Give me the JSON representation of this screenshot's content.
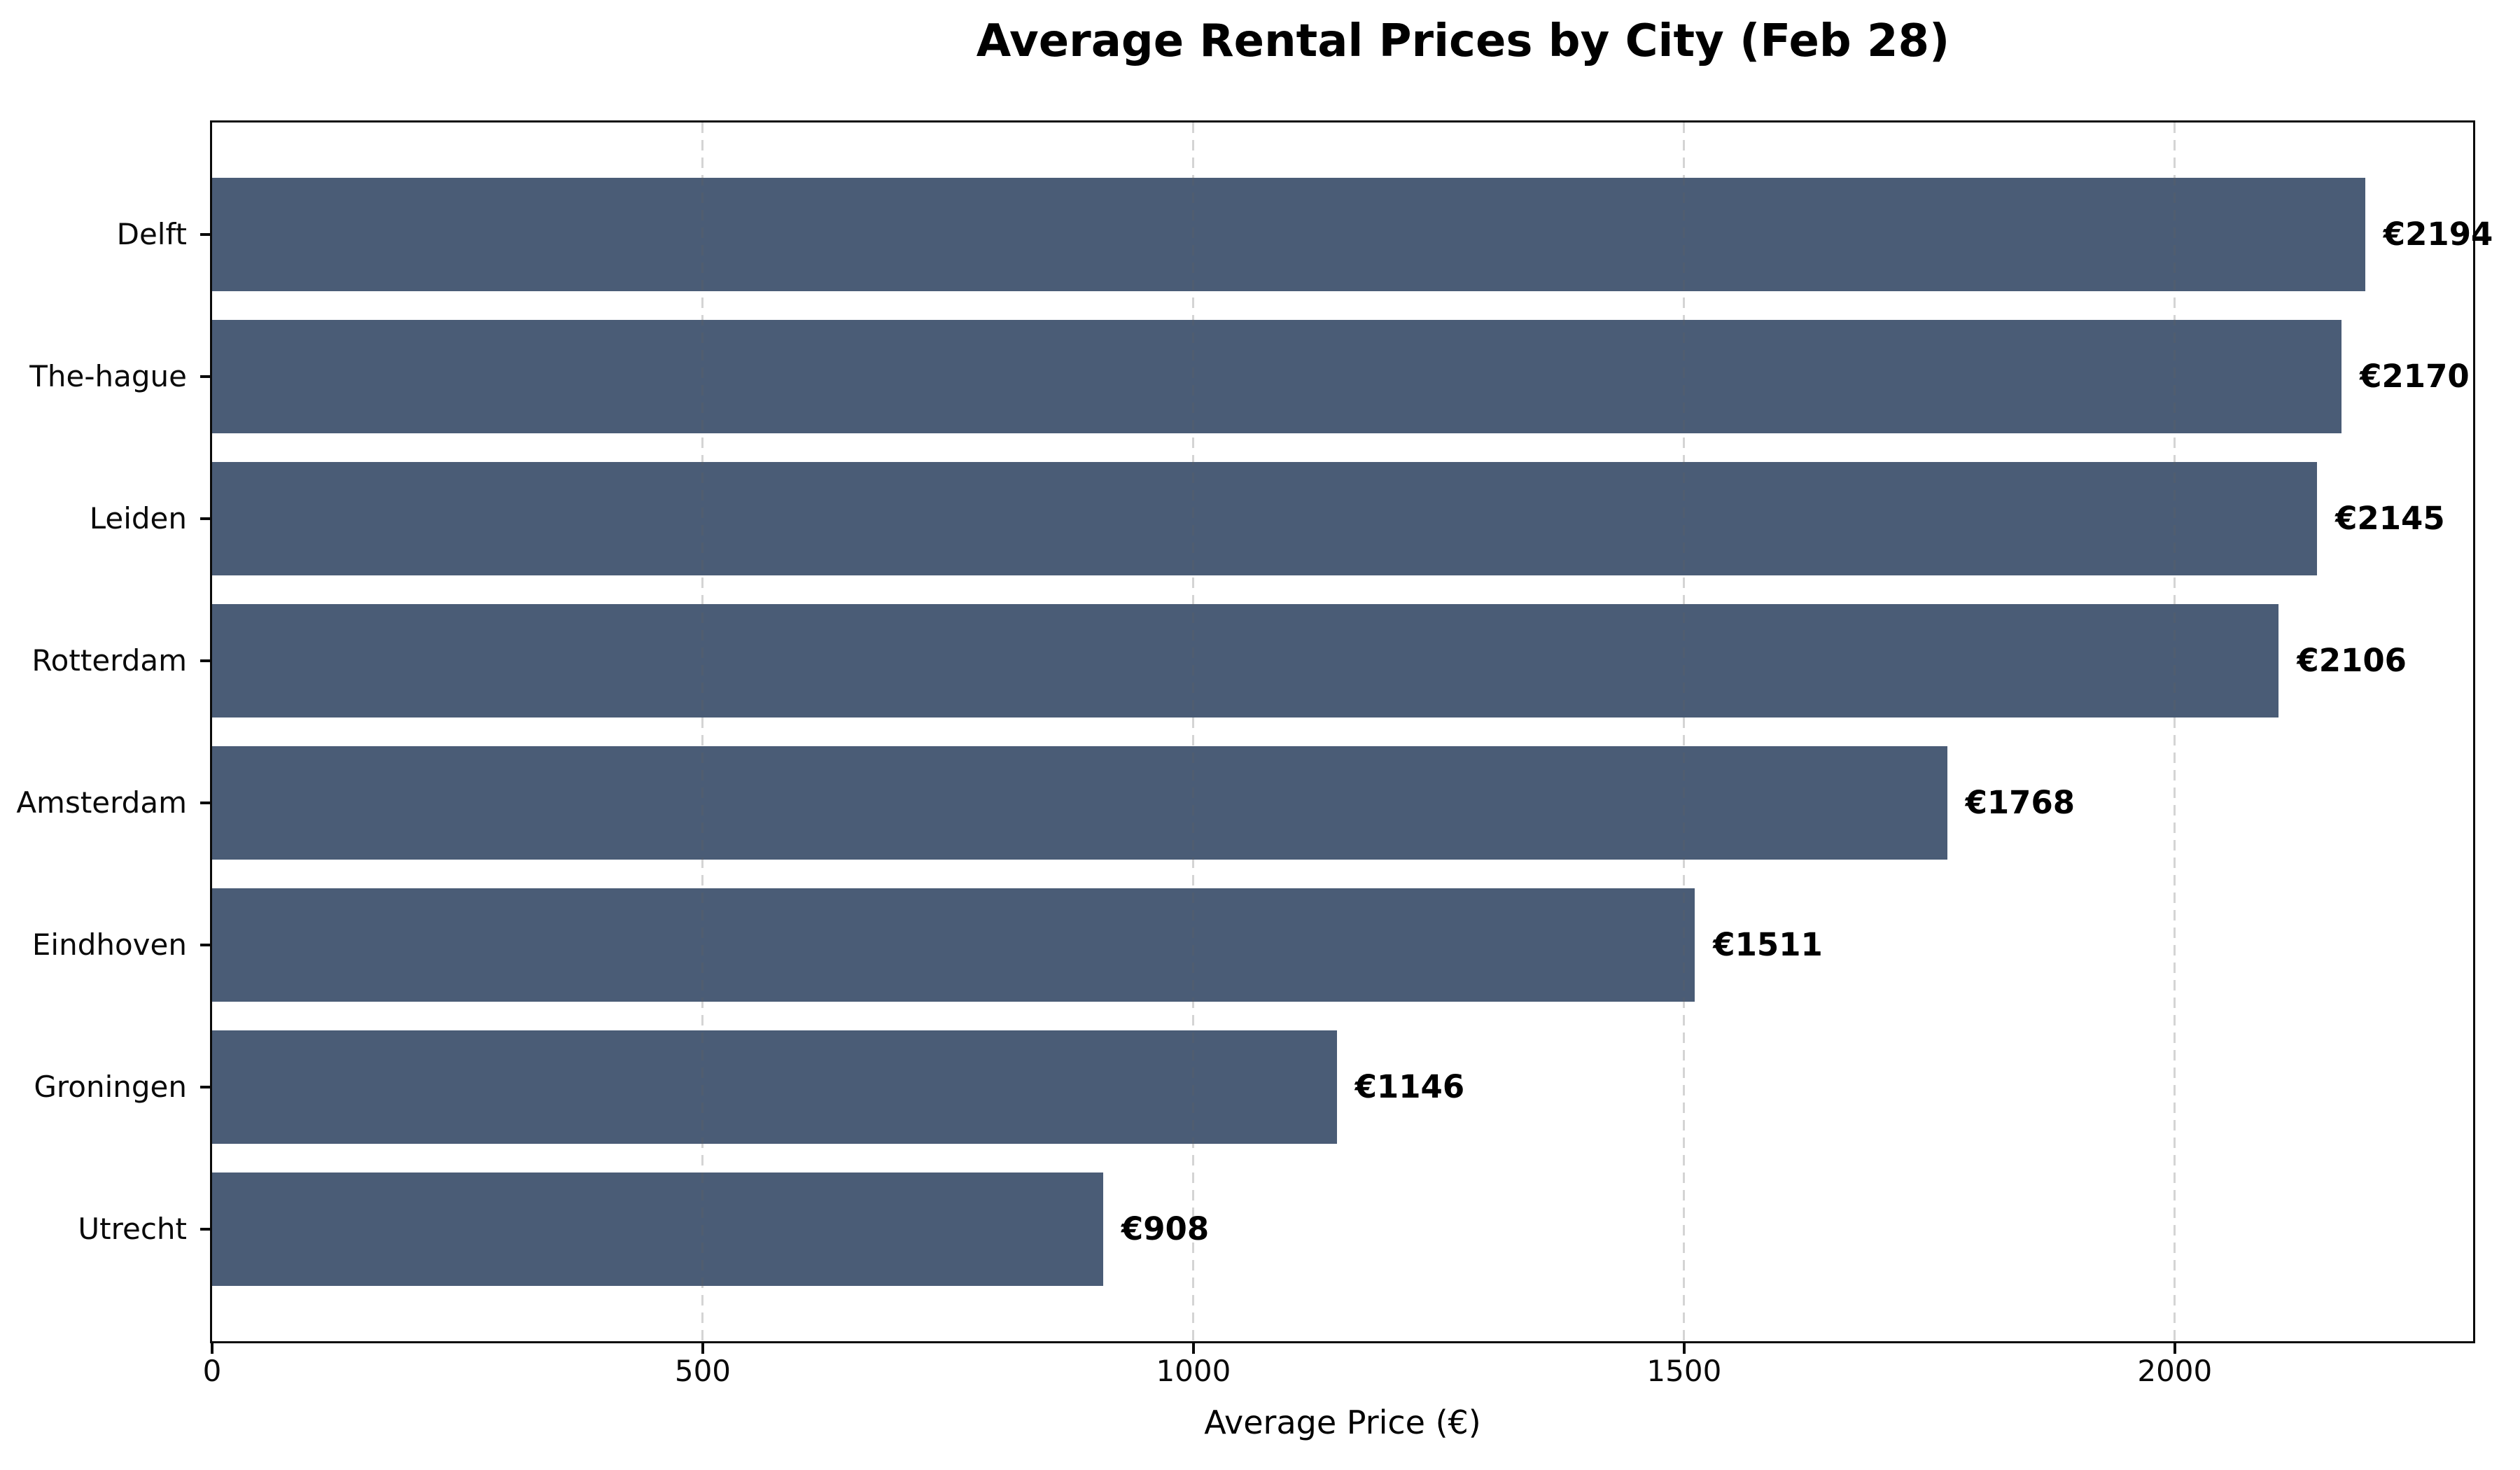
{
  "title": "Average Rental Prices by City (Feb 28)",
  "x_axis_label": "Average Price (€)",
  "chart_data": {
    "type": "bar",
    "orientation": "horizontal",
    "title": "Average Rental Prices by City (Feb 28)",
    "xlabel": "Average Price (€)",
    "ylabel": "",
    "categories": [
      "Delft",
      "The-hague",
      "Leiden",
      "Rotterdam",
      "Amsterdam",
      "Eindhoven",
      "Groningen",
      "Utrecht"
    ],
    "values": [
      2194,
      2170,
      2145,
      2106,
      1768,
      1511,
      1146,
      908
    ],
    "value_labels": [
      "€2194",
      "€2170",
      "€2145",
      "€2106",
      "€1768",
      "€1511",
      "€1146",
      "€908"
    ],
    "xlim": [
      0,
      2304
    ],
    "xticks": [
      0,
      500,
      1000,
      1500,
      2000
    ],
    "xtick_labels": [
      "0",
      "500",
      "1000",
      "1500",
      "2000"
    ],
    "grid": "x-axis, dashed, drawn over bars",
    "legend": "none",
    "bar_color": "#4a5c76",
    "grid_color": "#d4d4d4",
    "axis_color": "#0a0a0a"
  }
}
